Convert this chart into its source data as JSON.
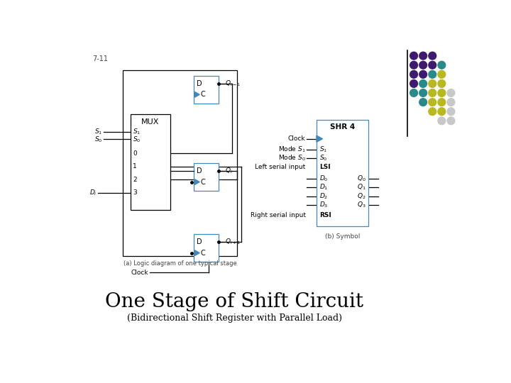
{
  "title": "One Stage of Shift Circuit",
  "subtitle": "(Bidirectional Shift Register with Parallel Load)",
  "slide_number": "7-11",
  "bg_color": "#ffffff",
  "ff_color": "#4488bb",
  "shr_color": "#4488bb",
  "title_fontsize": 20,
  "subtitle_fontsize": 9,
  "dot_colors_grid": [
    [
      "#3d1a6e",
      "#3d1a6e",
      "#3d1a6e",
      null,
      null
    ],
    [
      "#3d1a6e",
      "#3d1a6e",
      "#3d1a6e",
      "#2a8a8a",
      null
    ],
    [
      "#3d1a6e",
      "#3d1a6e",
      "#2a8a8a",
      "#b8b820",
      null
    ],
    [
      "#3d1a6e",
      "#2a8a8a",
      "#b8b820",
      "#b8b820",
      null
    ],
    [
      "#2a8a8a",
      "#2a8a8a",
      "#b8b820",
      "#b8b820",
      "#c8c8c8"
    ],
    [
      null,
      "#2a8a8a",
      "#b8b820",
      "#b8b820",
      "#c8c8c8"
    ],
    [
      null,
      null,
      "#b8b820",
      "#b8b820",
      "#c8c8c8"
    ],
    [
      null,
      null,
      null,
      "#c8c8c8",
      "#c8c8c8"
    ]
  ]
}
